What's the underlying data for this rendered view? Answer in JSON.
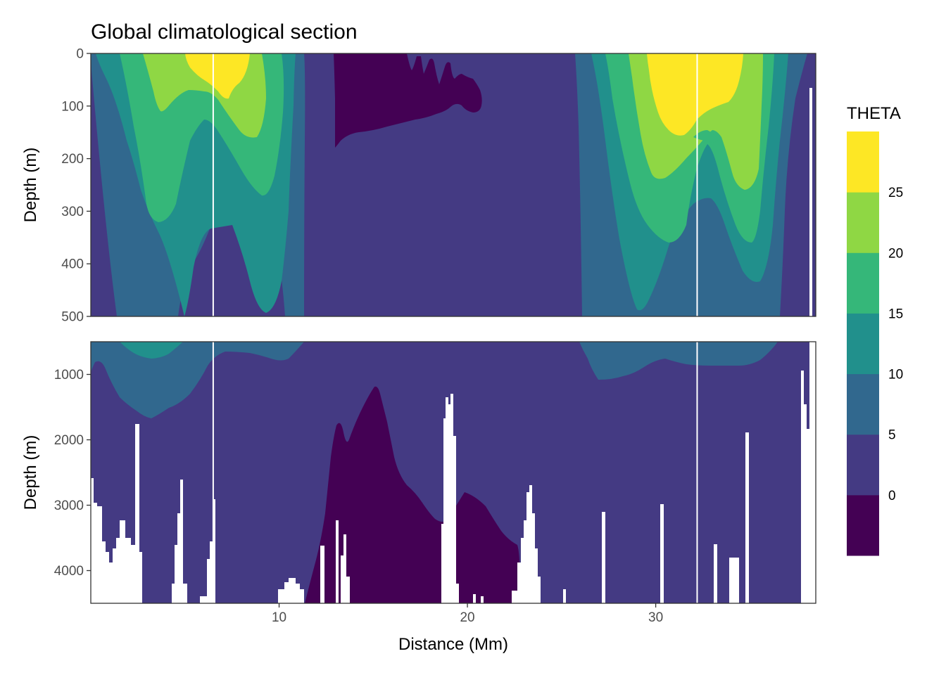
{
  "chart_data": {
    "type": "heatmap",
    "title": "Global climatological section",
    "xlabel": "Distance (Mm)",
    "xlim": [
      0,
      38.5
    ],
    "x_ticks": [
      "10",
      "20",
      "30"
    ],
    "x_tick_values": [
      10,
      20,
      30
    ],
    "grid": true,
    "legend_placement": "right",
    "legend": {
      "title": "THETA",
      "breaks": [
        "0",
        "5",
        "10",
        "15",
        "20",
        "25"
      ],
      "bins": [
        {
          "range": "<0",
          "color": "#440154"
        },
        {
          "range": "0-5",
          "color": "#443A83"
        },
        {
          "range": "5-10",
          "color": "#31688E"
        },
        {
          "range": "10-15",
          "color": "#21908C"
        },
        {
          "range": "15-20",
          "color": "#35B779"
        },
        {
          "range": "20-25",
          "color": "#8FD744"
        },
        {
          "range": ">25",
          "color": "#FDE725"
        }
      ]
    },
    "vertical_lines_x": [
      6.5,
      32.2
    ],
    "panels": [
      {
        "ylabel": "Depth (m)",
        "ylim": [
          0,
          500
        ],
        "y_ticks": [
          "0",
          "100",
          "200",
          "300",
          "400",
          "500"
        ],
        "y_tick_values": [
          0,
          100,
          200,
          300,
          400,
          500
        ],
        "contour_boundaries": [
          {
            "level": 0,
            "x": [
              12.95,
              12.95,
              13.55,
              15.0,
              16.8,
              18.8,
              19.6,
              20.3,
              20.9,
              20.9,
              20.3,
              19.6,
              18.8,
              16.8,
              15.0,
              13.55
            ],
            "y": [
              0,
              120,
              175,
              165,
              160,
              150,
              120,
              100,
              95,
              60,
              0,
              0,
              0,
              0,
              0,
              0
            ]
          },
          {
            "level": 5,
            "x": [
              11.4,
              11.5,
              11.45,
              11.35,
              26.2,
              26.15,
              26.1,
              26.05
            ],
            "y": [
              0,
              200,
              400,
              500,
              500,
              400,
              200,
              0
            ]
          },
          {
            "level": 10,
            "x": [
              0.3,
              1.3,
              3.5,
              5.0,
              6.5,
              8.0,
              9.7,
              10.2,
              10.3
            ],
            "y": [
              0,
              500,
              500,
              400,
              330,
              380,
              500,
              260,
              0
            ]
          },
          {
            "level": 15,
            "x": [
              1.5,
              3.5,
              5.5,
              6.5,
              7.5,
              10.2
            ],
            "y": [
              0,
              300,
              260,
              150,
              290,
              0
            ]
          }
        ]
      },
      {
        "ylabel": "Depth (m)",
        "ylim": [
          500,
          4500
        ],
        "y_ticks": [
          "1000",
          "2000",
          "3000",
          "4000"
        ],
        "y_tick_values": [
          1000,
          2000,
          3000,
          4000
        ],
        "contour_boundaries": [
          {
            "level": 0,
            "x": [
              12.5,
              13.3,
              15.0,
              16.2,
              17.5,
              19.0,
              20.5,
              22.0,
              23.0
            ],
            "y": [
              4500,
              2000,
              1200,
              1700,
              2600,
              2900,
              3300,
              3900,
              4500
            ]
          },
          {
            "level": 5,
            "x": [
              0,
              1.5,
              3.0,
              4.5,
              6.5,
              10.0,
              11.5,
              26.0,
              27.5,
              30.0,
              32.0,
              36.0,
              37.0
            ],
            "y": [
              1000,
              1400,
              1650,
              1300,
              700,
              800,
              500,
              500,
              1100,
              900,
              1000,
              700,
              500
            ]
          }
        ],
        "bathymetry_note": "white areas below the sea floor"
      }
    ]
  }
}
